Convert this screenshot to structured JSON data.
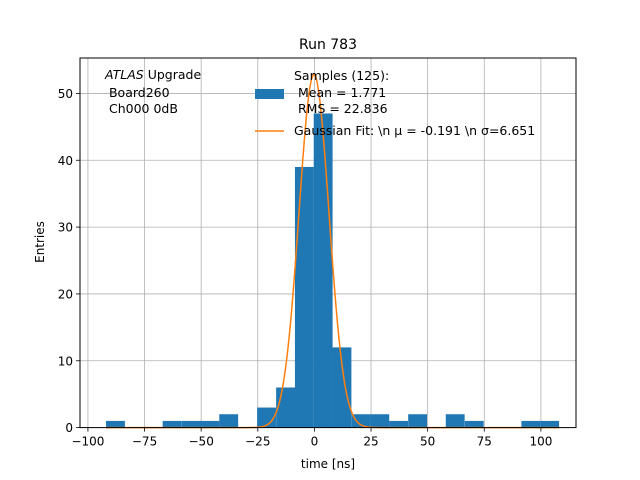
{
  "chart_data": {
    "type": "bar",
    "title": "Run 783",
    "xlabel": "time [ns]",
    "ylabel": "Entries",
    "xlim": [
      -103.5,
      115.5
    ],
    "ylim": [
      0,
      55.3
    ],
    "grid": true,
    "xticks": [
      -100,
      -75,
      -50,
      -25,
      0,
      25,
      50,
      75,
      100
    ],
    "yticks": [
      0,
      10,
      20,
      30,
      40,
      50
    ],
    "annotation": {
      "line1_italic": "ATLAS",
      "line1_rest": " Upgrade",
      "line2": " Board260",
      "line3": " Ch000 0dB"
    },
    "legend": {
      "placement": "top-center",
      "hist_label_lines": [
        "Samples (125):",
        " Mean = 1.771",
        " RMS = 22.836"
      ],
      "fit_label": "Gaussian Fit: \\n μ = -0.191 \\n σ=6.651"
    },
    "histogram": {
      "bin_width": 8.33,
      "bins": [
        {
          "start": -92.0,
          "count": 1
        },
        {
          "start": -67.0,
          "count": 1
        },
        {
          "start": -58.6,
          "count": 1
        },
        {
          "start": -50.3,
          "count": 1
        },
        {
          "start": -42.0,
          "count": 2
        },
        {
          "start": -25.3,
          "count": 3
        },
        {
          "start": -16.9,
          "count": 6
        },
        {
          "start": -8.6,
          "count": 39
        },
        {
          "start": -0.3,
          "count": 47
        },
        {
          "start": 8.0,
          "count": 12
        },
        {
          "start": 16.4,
          "count": 2
        },
        {
          "start": 24.7,
          "count": 2
        },
        {
          "start": 33.0,
          "count": 1
        },
        {
          "start": 41.4,
          "count": 2
        },
        {
          "start": 58.0,
          "count": 2
        },
        {
          "start": 66.4,
          "count": 1
        },
        {
          "start": 91.4,
          "count": 1
        },
        {
          "start": 99.7,
          "count": 1
        }
      ]
    },
    "fit": {
      "type": "gaussian",
      "amplitude": 52.8,
      "mu": -0.191,
      "sigma": 6.651,
      "x_range": [
        -92,
        108
      ]
    },
    "colors": {
      "bars": "#1f77b4",
      "fit": "#ff7f0e",
      "grid": "#b0b0b0"
    }
  }
}
